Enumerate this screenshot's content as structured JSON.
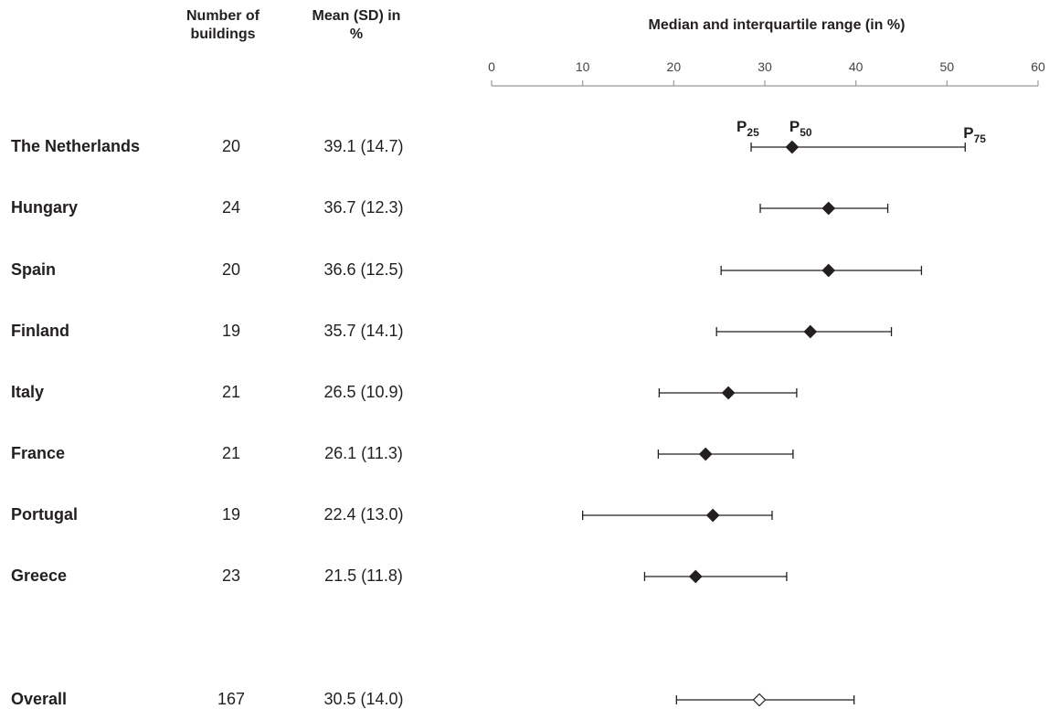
{
  "headers": {
    "buildings": "Number of buildings",
    "mean": "Mean (SD) in %",
    "median": "Median and interquartile range (in %)"
  },
  "annotations": {
    "p25": "P",
    "p25_sub": "25",
    "p50": "P",
    "p50_sub": "50",
    "p75": "P",
    "p75_sub": "75"
  },
  "chart_data": {
    "type": "scatter",
    "title": "Median and interquartile range (in %)",
    "xlim": [
      0,
      60
    ],
    "xticks": [
      0,
      10,
      20,
      30,
      40,
      50,
      60
    ],
    "grid": false,
    "rows": [
      {
        "country": "The Netherlands",
        "buildings": "20",
        "mean_sd": "39.1 (14.7)",
        "p25": 28.5,
        "p50": 33.0,
        "p75": 52.0,
        "marker": "filled"
      },
      {
        "country": "Hungary",
        "buildings": "24",
        "mean_sd": "36.7 (12.3)",
        "p25": 29.5,
        "p50": 37.0,
        "p75": 43.5,
        "marker": "filled"
      },
      {
        "country": "Spain",
        "buildings": "20",
        "mean_sd": "36.6 (12.5)",
        "p25": 25.2,
        "p50": 37.0,
        "p75": 47.2,
        "marker": "filled"
      },
      {
        "country": "Finland",
        "buildings": "19",
        "mean_sd": "35.7 (14.1)",
        "p25": 24.7,
        "p50": 35.0,
        "p75": 43.9,
        "marker": "filled"
      },
      {
        "country": "Italy",
        "buildings": "21",
        "mean_sd": "26.5 (10.9)",
        "p25": 18.4,
        "p50": 26.0,
        "p75": 33.5,
        "marker": "filled"
      },
      {
        "country": "France",
        "buildings": "21",
        "mean_sd": "26.1 (11.3)",
        "p25": 18.3,
        "p50": 23.5,
        "p75": 33.1,
        "marker": "filled"
      },
      {
        "country": "Portugal",
        "buildings": "19",
        "mean_sd": "22.4 (13.0)",
        "p25": 10.0,
        "p50": 24.3,
        "p75": 30.8,
        "marker": "filled"
      },
      {
        "country": "Greece",
        "buildings": "23",
        "mean_sd": "21.5 (11.8)",
        "p25": 16.8,
        "p50": 22.4,
        "p75": 32.4,
        "marker": "filled"
      },
      {
        "country": "Overall",
        "buildings": "167",
        "mean_sd": "30.5 (14.0)",
        "p25": 20.3,
        "p50": 29.4,
        "p75": 39.8,
        "marker": "open"
      }
    ]
  }
}
